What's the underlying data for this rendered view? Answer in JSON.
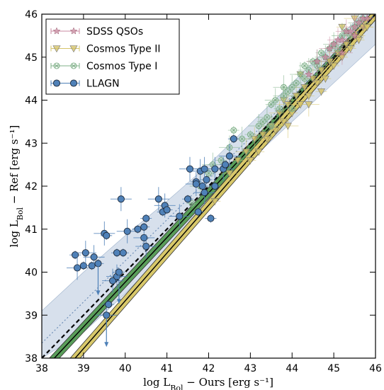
{
  "chart_data": {
    "type": "scatter",
    "xlabel": "log  L_Bol − Ours [erg s⁻¹]",
    "ylabel": "log  L_Bol − Ref [erg s⁻¹]",
    "xlim": [
      38,
      46
    ],
    "ylim": [
      38,
      46
    ],
    "xticks": [
      "38",
      "39",
      "40",
      "41",
      "42",
      "43",
      "44",
      "45",
      "46"
    ],
    "yticks": [
      "38",
      "39",
      "40",
      "41",
      "42",
      "43",
      "44",
      "45",
      "46"
    ],
    "legend_position": "top-left",
    "legend": [
      "SDSS QSOs",
      "Cosmos Type II",
      "Cosmos Type I",
      "LLAGN"
    ],
    "colors": {
      "sdss": "#c98aa0",
      "type2": "#d6c46a",
      "type1": "#7fb088",
      "llagn": "#4f81b8",
      "band": "#c9d6e6",
      "green_fit": "#5a9e5a",
      "yellow_fit": "#d8c86a"
    },
    "series": [
      {
        "name": "LLAGN",
        "marker": "circle",
        "points": [
          [
            38.8,
            40.4
          ],
          [
            38.85,
            40.1
          ],
          [
            39.0,
            40.15
          ],
          [
            39.05,
            40.45
          ],
          [
            39.2,
            40.15
          ],
          [
            39.25,
            40.35
          ],
          [
            39.35,
            40.2
          ],
          [
            39.5,
            40.9
          ],
          [
            39.55,
            40.85
          ],
          [
            39.55,
            39.0
          ],
          [
            39.6,
            39.25
          ],
          [
            39.7,
            39.8
          ],
          [
            39.8,
            40.45
          ],
          [
            39.8,
            39.9
          ],
          [
            39.85,
            40.0
          ],
          [
            39.9,
            41.7
          ],
          [
            39.95,
            40.45
          ],
          [
            40.05,
            40.95
          ],
          [
            40.3,
            41.0
          ],
          [
            40.45,
            40.8
          ],
          [
            40.45,
            41.05
          ],
          [
            40.5,
            40.6
          ],
          [
            40.5,
            41.25
          ],
          [
            40.8,
            41.7
          ],
          [
            40.9,
            41.4
          ],
          [
            40.95,
            41.55
          ],
          [
            41.0,
            41.45
          ],
          [
            41.3,
            41.3
          ],
          [
            41.5,
            41.7
          ],
          [
            41.55,
            42.4
          ],
          [
            41.7,
            42.1
          ],
          [
            41.7,
            42.05
          ],
          [
            41.75,
            41.4
          ],
          [
            41.8,
            42.35
          ],
          [
            41.85,
            42.0
          ],
          [
            41.9,
            41.85
          ],
          [
            41.95,
            42.15
          ],
          [
            41.9,
            42.4
          ],
          [
            42.05,
            41.25
          ],
          [
            42.15,
            42.4
          ],
          [
            42.15,
            42.0
          ],
          [
            42.35,
            42.4
          ],
          [
            42.4,
            42.5
          ],
          [
            42.5,
            42.7
          ],
          [
            42.6,
            43.1
          ]
        ]
      },
      {
        "name": "Cosmos Type I",
        "marker": "x-circle",
        "points": [
          [
            41.6,
            41.6
          ],
          [
            41.8,
            42.0
          ],
          [
            42.0,
            42.3
          ],
          [
            42.1,
            42.5
          ],
          [
            42.3,
            42.6
          ],
          [
            42.5,
            42.9
          ],
          [
            42.6,
            43.3
          ],
          [
            42.8,
            43.1
          ],
          [
            43.0,
            43.2
          ],
          [
            43.2,
            43.4
          ],
          [
            43.3,
            43.5
          ],
          [
            43.4,
            43.6
          ],
          [
            43.5,
            43.9
          ],
          [
            43.6,
            44.0
          ],
          [
            43.7,
            43.8
          ],
          [
            43.8,
            44.1
          ],
          [
            43.9,
            44.2
          ],
          [
            44.0,
            44.3
          ],
          [
            44.1,
            44.4
          ],
          [
            44.2,
            44.6
          ],
          [
            44.3,
            44.5
          ],
          [
            44.4,
            44.7
          ],
          [
            44.5,
            44.9
          ],
          [
            44.6,
            44.8
          ],
          [
            44.7,
            45.1
          ],
          [
            44.8,
            45.0
          ],
          [
            44.9,
            45.2
          ],
          [
            45.0,
            45.3
          ],
          [
            45.1,
            45.2
          ],
          [
            45.2,
            45.5
          ],
          [
            45.3,
            45.6
          ],
          [
            45.4,
            45.5
          ],
          [
            45.5,
            45.7
          ],
          [
            45.6,
            45.8
          ],
          [
            45.7,
            45.9
          ],
          [
            43.8,
            44.3
          ],
          [
            44.0,
            43.8
          ],
          [
            43.5,
            43.4
          ],
          [
            44.3,
            44.8
          ],
          [
            44.6,
            44.9
          ]
        ]
      },
      {
        "name": "Cosmos Type II",
        "marker": "triangle-down",
        "points": [
          [
            42.15,
            41.65
          ],
          [
            42.5,
            42.3
          ],
          [
            42.7,
            42.6
          ],
          [
            42.9,
            42.8
          ],
          [
            43.0,
            42.6
          ],
          [
            43.1,
            43.1
          ],
          [
            43.2,
            42.8
          ],
          [
            43.3,
            43.2
          ],
          [
            43.4,
            43.1
          ],
          [
            43.5,
            43.4
          ],
          [
            43.6,
            43.3
          ],
          [
            43.7,
            43.7
          ],
          [
            43.8,
            43.5
          ],
          [
            43.9,
            43.9
          ],
          [
            44.0,
            43.7
          ],
          [
            44.1,
            44.1
          ],
          [
            44.2,
            43.9
          ],
          [
            44.3,
            44.3
          ],
          [
            44.4,
            44.1
          ],
          [
            44.5,
            44.5
          ],
          [
            44.6,
            44.4
          ],
          [
            44.7,
            44.7
          ],
          [
            44.8,
            44.5
          ],
          [
            44.9,
            44.9
          ],
          [
            45.0,
            44.8
          ],
          [
            45.1,
            45.1
          ],
          [
            45.2,
            45.0
          ],
          [
            45.3,
            45.3
          ],
          [
            45.4,
            45.2
          ],
          [
            45.5,
            45.5
          ],
          [
            45.6,
            45.4
          ],
          [
            45.7,
            45.7
          ],
          [
            45.8,
            45.7
          ],
          [
            44.4,
            43.9
          ],
          [
            45.2,
            45.7
          ],
          [
            43.9,
            43.4
          ],
          [
            44.7,
            44.2
          ],
          [
            45.5,
            45.9
          ],
          [
            44.2,
            44.6
          ],
          [
            43.8,
            44.0
          ]
        ]
      },
      {
        "name": "SDSS QSOs",
        "marker": "star",
        "points": [
          [
            44.4,
            44.6
          ],
          [
            44.6,
            44.9
          ],
          [
            44.8,
            45.0
          ],
          [
            44.9,
            45.2
          ],
          [
            45.0,
            45.3
          ],
          [
            45.1,
            45.4
          ],
          [
            45.2,
            45.4
          ],
          [
            45.3,
            45.6
          ],
          [
            45.4,
            45.6
          ],
          [
            45.5,
            45.7
          ],
          [
            45.6,
            45.8
          ],
          [
            45.7,
            45.9
          ],
          [
            45.8,
            45.9
          ],
          [
            45.2,
            45.1
          ],
          [
            45.5,
            45.5
          ]
        ]
      }
    ],
    "lines": [
      {
        "kind": "identity",
        "style": "dashed",
        "x": [
          38,
          46
        ],
        "y": [
          38,
          46
        ]
      },
      {
        "kind": "fit",
        "style": "solid",
        "color": "green_fit",
        "x": [
          38.3,
          46
        ],
        "y": [
          38,
          46
        ]
      },
      {
        "kind": "fit",
        "style": "solid",
        "color": "yellow_fit",
        "x": [
          38.8,
          46
        ],
        "y": [
          38,
          46
        ]
      },
      {
        "kind": "fit",
        "style": "dotted",
        "x": [
          38,
          46
        ],
        "y": [
          38.35,
          46
        ]
      }
    ],
    "band": {
      "x": [
        38,
        39,
        40,
        41,
        42,
        43,
        44,
        45,
        46
      ],
      "y_low": [
        38.0,
        38.6,
        39.5,
        40.5,
        41.6,
        42.6,
        43.5,
        44.4,
        45.3
      ],
      "y_high": [
        39.1,
        40.0,
        40.85,
        41.65,
        42.5,
        43.45,
        44.4,
        45.35,
        46.3
      ]
    }
  }
}
